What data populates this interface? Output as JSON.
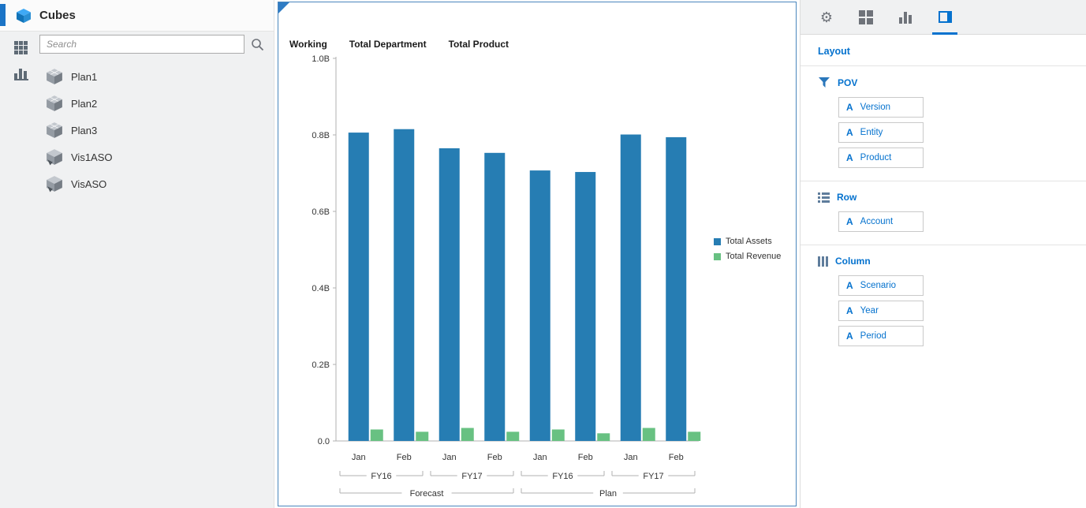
{
  "accent_color": "#0572ce",
  "sidebar": {
    "title": "Cubes",
    "search": {
      "placeholder": "Search"
    },
    "cubes": [
      {
        "label": "Plan1",
        "type": "bso"
      },
      {
        "label": "Plan2",
        "type": "bso"
      },
      {
        "label": "Plan3",
        "type": "bso"
      },
      {
        "label": "Vis1ASO",
        "type": "aso"
      },
      {
        "label": "VisASO",
        "type": "aso"
      }
    ]
  },
  "pov_bar": {
    "items": [
      "Working",
      "Total Department",
      "Total Product"
    ]
  },
  "chart_data": {
    "type": "bar",
    "title": "",
    "categories": [
      "Jan",
      "Feb",
      "Jan",
      "Feb",
      "Jan",
      "Feb",
      "Jan",
      "Feb"
    ],
    "group_levels": [
      [
        {
          "label": "FY16",
          "start": 0,
          "end": 1
        },
        {
          "label": "FY17",
          "start": 2,
          "end": 3
        },
        {
          "label": "FY16",
          "start": 4,
          "end": 5
        },
        {
          "label": "FY17",
          "start": 6,
          "end": 7
        }
      ],
      [
        {
          "label": "Forecast",
          "start": 0,
          "end": 3
        },
        {
          "label": "Plan",
          "start": 4,
          "end": 7
        }
      ]
    ],
    "series": [
      {
        "name": "Total Assets",
        "color": "#267db3",
        "values": [
          0.806,
          0.815,
          0.765,
          0.753,
          0.707,
          0.703,
          0.801,
          0.794
        ]
      },
      {
        "name": "Total Revenue",
        "color": "#68c182",
        "values": [
          0.03,
          0.024,
          0.034,
          0.024,
          0.03,
          0.02,
          0.034,
          0.024
        ]
      }
    ],
    "xlabel": "",
    "ylabel": "",
    "ylim": [
      0,
      1.0
    ],
    "ytick_step": 0.2,
    "ytick_labels": [
      "0.0",
      "0.2B",
      "0.4B",
      "0.6B",
      "0.8B",
      "1.0B"
    ],
    "grid": false,
    "legend_position": "right"
  },
  "layout_panel": {
    "tabs": [
      "settings-tab",
      "tiles-tab",
      "chart-tab",
      "layout-tab"
    ],
    "selected_tab": 3,
    "title": "Layout",
    "sections": [
      {
        "label": "POV",
        "icon": "funnel-icon",
        "items": [
          "Version",
          "Entity",
          "Product"
        ]
      },
      {
        "label": "Row",
        "icon": "rows-icon",
        "items": [
          "Account"
        ]
      },
      {
        "label": "Column",
        "icon": "columns-icon",
        "items": [
          "Scenario",
          "Year",
          "Period"
        ]
      }
    ]
  }
}
